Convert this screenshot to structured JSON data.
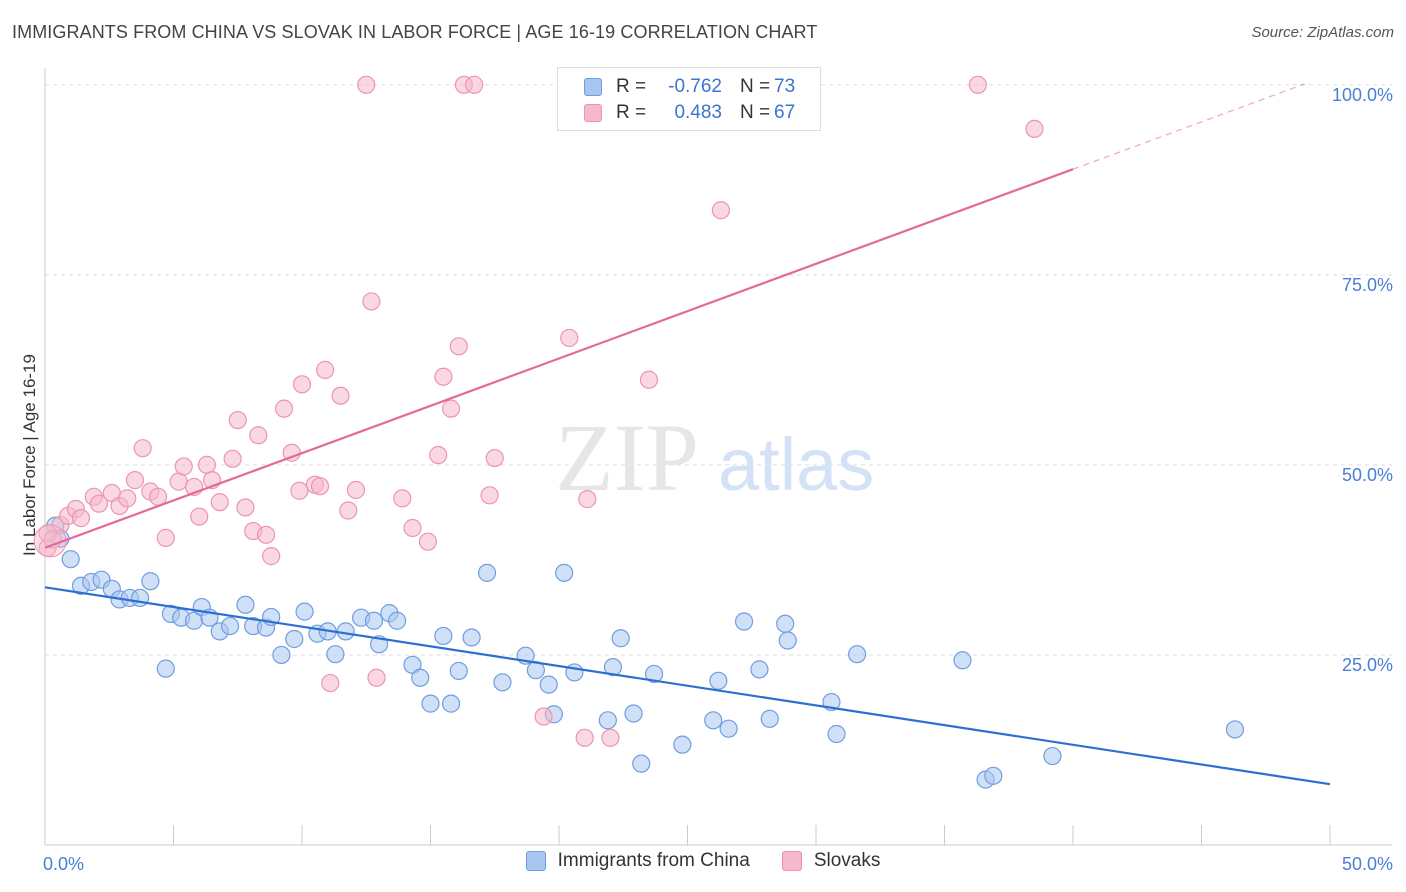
{
  "title": "IMMIGRANTS FROM CHINA VS SLOVAK IN LABOR FORCE | AGE 16-19 CORRELATION CHART",
  "source": "Source: ZipAtlas.com",
  "watermark": {
    "zip": "ZIP",
    "atlas": "atlas"
  },
  "legend_top": {
    "rows": [
      {
        "r_label": "R =",
        "r_value": "-0.762",
        "n_label": "N =",
        "n_value": "73"
      },
      {
        "r_label": "R =",
        "r_value": "0.483",
        "n_label": "N =",
        "n_value": "67"
      }
    ]
  },
  "colors": {
    "china_fill": "#a9c6f0",
    "china_stroke": "#6f9ee0",
    "china_line": "#2d6fd1",
    "slovak_fill": "#f6b8cb",
    "slovak_stroke": "#ee94b1",
    "slovak_line": "#e4689a",
    "tick_label": "#4a7fd6",
    "grid": "#dddddd"
  },
  "chart_data": {
    "type": "scatter",
    "title": "IMMIGRANTS FROM CHINA VS SLOVAK IN LABOR FORCE | AGE 16-19 CORRELATION CHART",
    "xlabel": "",
    "ylabel": "In Labor Force | Age 16-19",
    "xlim": [
      0,
      50
    ],
    "ylim": [
      0,
      103
    ],
    "x_tick_labels": [
      "0.0%",
      "50.0%"
    ],
    "y_ticks": [
      {
        "value": 25,
        "label": "25.0%"
      },
      {
        "value": 50,
        "label": "50.0%"
      },
      {
        "value": 75,
        "label": "75.0%"
      },
      {
        "value": 100,
        "label": "100.0%"
      }
    ],
    "grid": true,
    "legend_position": "bottom",
    "series": [
      {
        "name": "Immigrants from China",
        "r": -0.762,
        "n": 73,
        "trend": {
          "x": [
            0,
            50
          ],
          "y": [
            33.9,
            8.0
          ]
        },
        "points": [
          [
            0.4,
            42.0
          ],
          [
            0.6,
            40.3
          ],
          [
            1.0,
            37.6
          ],
          [
            1.4,
            34.1
          ],
          [
            1.8,
            34.6
          ],
          [
            2.2,
            34.9
          ],
          [
            2.6,
            33.7
          ],
          [
            2.9,
            32.3
          ],
          [
            3.3,
            32.5
          ],
          [
            3.7,
            32.5
          ],
          [
            4.1,
            34.7
          ],
          [
            4.7,
            23.2
          ],
          [
            4.9,
            30.4
          ],
          [
            5.3,
            29.9
          ],
          [
            5.8,
            29.5
          ],
          [
            6.1,
            31.3
          ],
          [
            6.4,
            29.9
          ],
          [
            6.8,
            28.1
          ],
          [
            7.2,
            28.8
          ],
          [
            7.8,
            31.6
          ],
          [
            8.1,
            28.8
          ],
          [
            8.6,
            28.6
          ],
          [
            8.8,
            30.0
          ],
          [
            9.2,
            25.0
          ],
          [
            9.7,
            27.1
          ],
          [
            10.1,
            30.7
          ],
          [
            10.6,
            27.8
          ],
          [
            11.0,
            28.1
          ],
          [
            11.3,
            25.1
          ],
          [
            11.7,
            28.1
          ],
          [
            12.3,
            29.9
          ],
          [
            12.8,
            29.5
          ],
          [
            13.0,
            26.4
          ],
          [
            13.4,
            30.5
          ],
          [
            13.7,
            29.5
          ],
          [
            14.3,
            23.7
          ],
          [
            14.6,
            22.0
          ],
          [
            15.0,
            18.6
          ],
          [
            15.5,
            27.5
          ],
          [
            15.8,
            18.6
          ],
          [
            16.1,
            22.9
          ],
          [
            16.6,
            27.3
          ],
          [
            17.2,
            35.8
          ],
          [
            17.8,
            21.4
          ],
          [
            18.7,
            24.9
          ],
          [
            19.1,
            23.0
          ],
          [
            19.6,
            21.1
          ],
          [
            19.8,
            17.2
          ],
          [
            20.2,
            35.8
          ],
          [
            20.6,
            22.7
          ],
          [
            21.9,
            16.4
          ],
          [
            22.1,
            23.4
          ],
          [
            22.4,
            27.2
          ],
          [
            22.9,
            17.3
          ],
          [
            23.2,
            10.7
          ],
          [
            23.7,
            22.5
          ],
          [
            24.8,
            13.2
          ],
          [
            26.0,
            16.4
          ],
          [
            26.2,
            21.6
          ],
          [
            26.6,
            15.3
          ],
          [
            27.2,
            29.4
          ],
          [
            27.8,
            23.1
          ],
          [
            28.2,
            16.6
          ],
          [
            28.8,
            29.1
          ],
          [
            28.9,
            26.9
          ],
          [
            30.6,
            18.8
          ],
          [
            30.8,
            14.6
          ],
          [
            31.6,
            25.1
          ],
          [
            35.7,
            24.3
          ],
          [
            36.6,
            8.6
          ],
          [
            36.9,
            9.1
          ],
          [
            39.2,
            11.7
          ],
          [
            46.3,
            15.2
          ]
        ]
      },
      {
        "name": "Slovaks",
        "r": 0.483,
        "n": 67,
        "trend": {
          "x": [
            0,
            40
          ],
          "y": [
            39.1,
            88.9
          ]
        },
        "trend_dashed": {
          "x": [
            40,
            49
          ],
          "y": [
            88.9,
            100.1
          ]
        },
        "points": [
          [
            0.1,
            39.1
          ],
          [
            0.6,
            42.1
          ],
          [
            0.9,
            43.3
          ],
          [
            1.2,
            44.2
          ],
          [
            1.4,
            43.0
          ],
          [
            1.9,
            45.8
          ],
          [
            2.1,
            44.9
          ],
          [
            2.6,
            46.3
          ],
          [
            2.9,
            44.6
          ],
          [
            3.2,
            45.6
          ],
          [
            3.5,
            48.0
          ],
          [
            3.8,
            52.2
          ],
          [
            4.1,
            46.5
          ],
          [
            4.4,
            45.8
          ],
          [
            4.7,
            40.4
          ],
          [
            5.2,
            47.8
          ],
          [
            5.4,
            49.8
          ],
          [
            5.8,
            47.1
          ],
          [
            6.0,
            43.2
          ],
          [
            6.3,
            50.0
          ],
          [
            6.5,
            48.0
          ],
          [
            6.8,
            45.1
          ],
          [
            7.3,
            50.8
          ],
          [
            7.5,
            55.9
          ],
          [
            7.8,
            44.4
          ],
          [
            8.1,
            41.3
          ],
          [
            8.3,
            53.9
          ],
          [
            8.6,
            40.8
          ],
          [
            8.8,
            38.0
          ],
          [
            9.3,
            57.4
          ],
          [
            9.6,
            51.6
          ],
          [
            9.9,
            46.6
          ],
          [
            10.0,
            60.6
          ],
          [
            10.5,
            47.4
          ],
          [
            10.7,
            47.2
          ],
          [
            10.9,
            62.5
          ],
          [
            11.1,
            21.3
          ],
          [
            11.5,
            59.1
          ],
          [
            11.8,
            44.0
          ],
          [
            12.1,
            46.7
          ],
          [
            12.5,
            100.0
          ],
          [
            12.7,
            71.5
          ],
          [
            12.9,
            22.0
          ],
          [
            13.9,
            45.6
          ],
          [
            14.3,
            41.7
          ],
          [
            14.9,
            39.9
          ],
          [
            15.3,
            51.3
          ],
          [
            15.5,
            61.6
          ],
          [
            15.8,
            57.4
          ],
          [
            16.1,
            65.6
          ],
          [
            16.3,
            100.0
          ],
          [
            16.7,
            100.0
          ],
          [
            17.3,
            46.0
          ],
          [
            17.5,
            50.9
          ],
          [
            19.4,
            16.9
          ],
          [
            20.4,
            66.7
          ],
          [
            20.5,
            100.0
          ],
          [
            21.0,
            14.1
          ],
          [
            21.1,
            45.5
          ],
          [
            22.0,
            14.1
          ],
          [
            23.5,
            61.2
          ],
          [
            23.7,
            100.0
          ],
          [
            26.3,
            83.5
          ],
          [
            36.3,
            100.0
          ],
          [
            38.5,
            94.2
          ],
          [
            0.1,
            41.0
          ],
          [
            0.3,
            40.2
          ]
        ]
      }
    ]
  }
}
